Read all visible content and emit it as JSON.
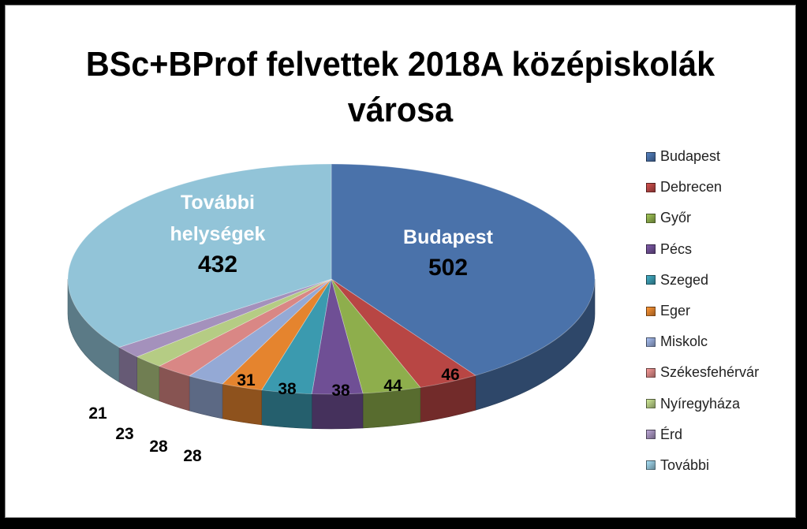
{
  "chart_data": {
    "type": "pie",
    "title": "BSc+BProf felvettek 2018A középiskolák városa",
    "categories": [
      "Budapest",
      "Debrecen",
      "Győr",
      "Pécs",
      "Szeged",
      "Eger",
      "Miskolc",
      "Székesfehérvár",
      "Nyíregyháza",
      "Érd",
      "További"
    ],
    "values": [
      502,
      46,
      44,
      38,
      38,
      31,
      28,
      28,
      23,
      21,
      432
    ],
    "colors": [
      "#4a72aa",
      "#b84644",
      "#8eae4c",
      "#6f4f95",
      "#3b9aaf",
      "#e5842e",
      "#94a9d5",
      "#d98785",
      "#b5cc84",
      "#a491bc",
      "#92c4d8"
    ],
    "data_labels": [
      {
        "lines": [
          "Budapest",
          "502"
        ]
      },
      {
        "lines": [
          "46"
        ]
      },
      {
        "lines": [
          "44"
        ]
      },
      {
        "lines": [
          "38"
        ]
      },
      {
        "lines": [
          "38"
        ]
      },
      {
        "lines": [
          "31"
        ]
      },
      {
        "lines": [
          "28"
        ]
      },
      {
        "lines": [
          "28"
        ]
      },
      {
        "lines": [
          "23"
        ]
      },
      {
        "lines": [
          "21"
        ]
      },
      {
        "lines": [
          "További",
          "helységek",
          "432"
        ]
      }
    ],
    "legend_position": "right",
    "style": "3d-pie"
  }
}
